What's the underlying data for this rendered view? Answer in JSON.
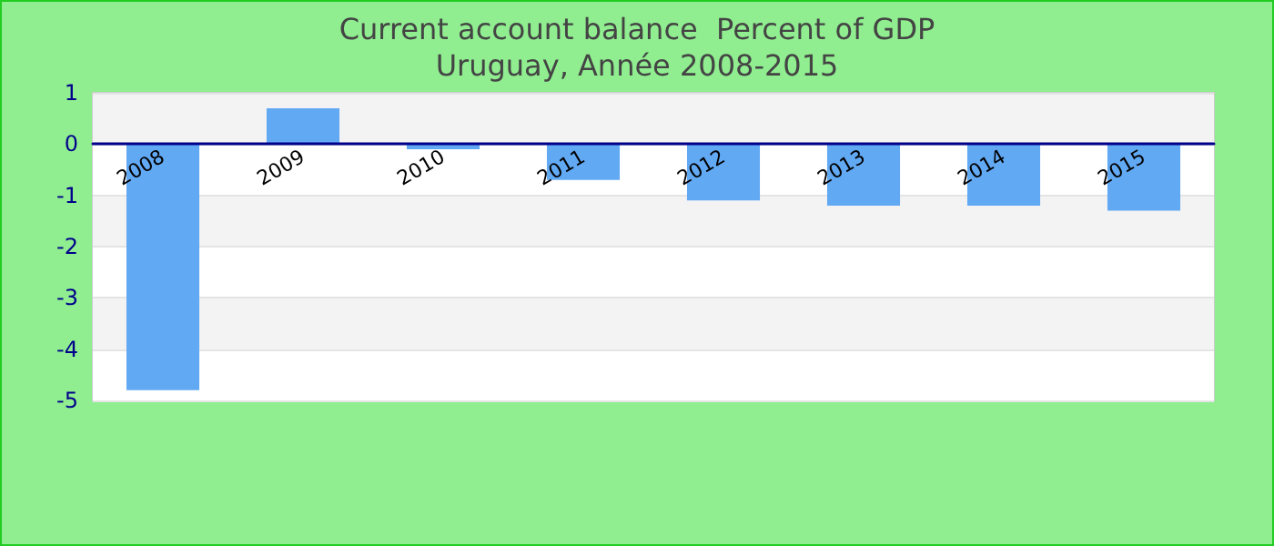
{
  "chart_data": {
    "type": "bar",
    "title": "Current account balance  Percent of GDP",
    "subtitle": "Uruguay, Année 2008-2015",
    "categories": [
      "2008",
      "2009",
      "2010",
      "2011",
      "2012",
      "2013",
      "2014",
      "2015"
    ],
    "values": [
      -4.8,
      0.7,
      -0.1,
      -0.7,
      -1.1,
      -1.2,
      -1.2,
      -1.3
    ],
    "color": "#62a9f4",
    "ylim": [
      -5,
      1
    ],
    "yticks": [
      -5,
      -4,
      -3,
      -2,
      -1,
      0,
      1
    ],
    "grid": true
  }
}
